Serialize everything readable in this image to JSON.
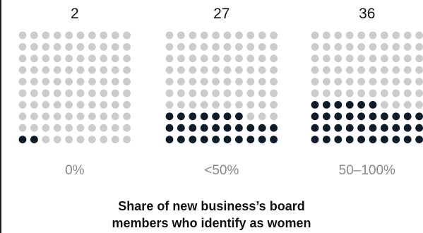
{
  "chart_data": {
    "type": "waffle",
    "grid": {
      "rows": 10,
      "cols": 10,
      "total": 100
    },
    "categories": [
      "0%",
      "<50%",
      "50–100%"
    ],
    "values": [
      2,
      27,
      36
    ],
    "xlabel_lines": [
      "Share of new business’s board",
      "members who identify as women"
    ],
    "colors": {
      "filled": "#0d1b2a",
      "empty": "#cccccc"
    }
  }
}
